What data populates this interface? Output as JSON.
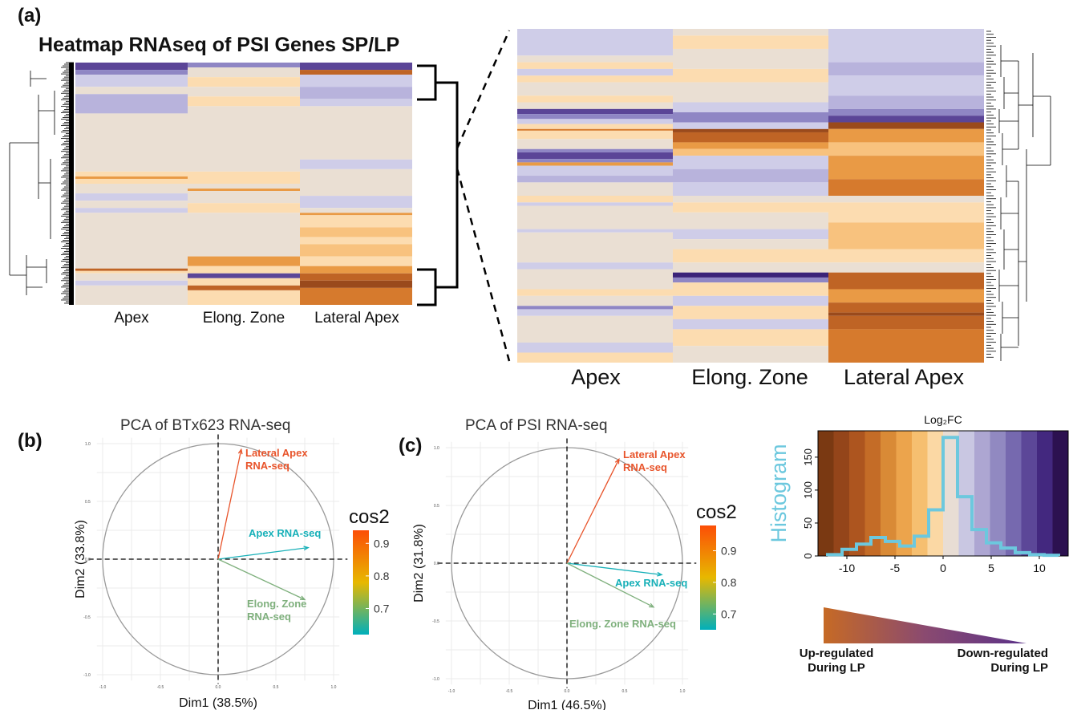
{
  "panel_a": {
    "letter": "(a)",
    "title": "Heatmap RNAseq of PSI Genes SP/LP",
    "columns": [
      "Apex",
      "Elong. Zone",
      "Lateral Apex"
    ]
  },
  "panel_b": {
    "letter": "(b)",
    "title": "PCA of BTx623 RNA-seq",
    "xlabel": "Dim1 (38.5%)",
    "ylabel": "Dim2 (33.8%)",
    "legend_title": "cos2",
    "legend_ticks": [
      "0.9",
      "0.8",
      "0.7"
    ]
  },
  "panel_c": {
    "letter": "(c)",
    "title": "PCA of PSI RNA-seq",
    "xlabel": "Dim1 (46.5%)",
    "ylabel": "Dim2 (31.8%)",
    "legend_title": "cos2",
    "legend_ticks": [
      "0.9",
      "0.8",
      "0.7"
    ]
  },
  "histogram_panel": {
    "title": "Log₂FC",
    "ylabel": "Histogram",
    "up_label": "Up-regulated During LP",
    "down_label": "Down-regulated During LP",
    "up_line1": "Up-regulated",
    "up_line2": "During LP",
    "down_line1": "Down-regulated",
    "down_line2": "During LP"
  },
  "colors": {
    "heat_low": "#8b3d14",
    "heat_mid_orange": "#f4b86a",
    "heat_neutral": "#eadfd3",
    "heat_lavender": "#c9c7e4",
    "heat_high": "#2d1248",
    "hist_line": "#6cc8de",
    "arrow_lateral": "#e8542b",
    "arrow_apex": "#17b0b8",
    "arrow_elong": "#7fb07d"
  },
  "chart_data": [
    {
      "type": "scatter",
      "title": "PCA of BTx623 RNA-seq",
      "xlabel": "Dim1 (38.5%)",
      "ylabel": "Dim2 (33.8%)",
      "xlim": [
        -1.0,
        1.0
      ],
      "ylim": [
        -1.0,
        1.0
      ],
      "x_ticks": [
        "-1.0",
        "-0.5",
        "0.0",
        "0.5",
        "1.0"
      ],
      "y_ticks": [
        "1.0",
        "0.5",
        "0.0",
        "-0.5",
        "-1.0"
      ],
      "grid": true,
      "legend": "right",
      "variables": [
        {
          "label_line1": "Lateral Apex",
          "label_line2": "RNA-seq",
          "x": 0.2,
          "y": 0.95,
          "cos2": 0.94
        },
        {
          "label_line1": "Apex RNA-seq",
          "label_line2": "",
          "x": 0.78,
          "y": 0.1,
          "cos2": 0.62
        },
        {
          "label_line1": "Elong. Zone",
          "label_line2": "RNA-seq",
          "x": 0.75,
          "y": -0.35,
          "cos2": 0.7
        }
      ],
      "cos2_range": [
        0.62,
        0.94
      ]
    },
    {
      "type": "scatter",
      "title": "PCA of PSI RNA-seq",
      "xlabel": "Dim1 (46.5%)",
      "ylabel": "Dim2 (31.8%)",
      "xlim": [
        -1.0,
        1.0
      ],
      "ylim": [
        -1.0,
        1.0
      ],
      "x_ticks": [
        "-1.0",
        "-0.5",
        "0.0",
        "0.5",
        "1.0"
      ],
      "y_ticks": [
        "1.0",
        "0.5",
        "0.0",
        "-0.5",
        "-1.0"
      ],
      "grid": true,
      "legend": "right",
      "variables": [
        {
          "label_line1": "Lateral Apex",
          "label_line2": "RNA-seq",
          "x": 0.45,
          "y": 0.9,
          "cos2": 0.97
        },
        {
          "label_line1": "Apex RNA-seq",
          "label_line2": "",
          "x": 0.82,
          "y": -0.1,
          "cos2": 0.7
        },
        {
          "label_line1": "Elong. Zone RNA-seq",
          "label_line2": "",
          "x": 0.75,
          "y": -0.38,
          "cos2": 0.66
        }
      ],
      "cos2_range": [
        0.65,
        0.98
      ]
    },
    {
      "type": "bar",
      "title": "Log₂FC",
      "ylabel": "Histogram",
      "xlim": [
        -13,
        13
      ],
      "ylim": [
        0,
        190
      ],
      "x_ticks": [
        -10,
        -5,
        0,
        5,
        10
      ],
      "y_ticks": [
        0,
        50,
        100,
        150
      ],
      "bin_edges": [
        -12,
        -10.5,
        -9,
        -7.5,
        -6,
        -4.5,
        -3,
        -1.5,
        0,
        1.5,
        3,
        4.5,
        6,
        7.5,
        9,
        10.5,
        12
      ],
      "counts": [
        2,
        10,
        18,
        28,
        22,
        15,
        30,
        70,
        180,
        90,
        40,
        20,
        12,
        5,
        2,
        1
      ],
      "color_bands": [
        "#7a3912",
        "#94451a",
        "#ad551f",
        "#c46c27",
        "#d98a36",
        "#eca44c",
        "#f6bf70",
        "#fbd8a4",
        "#e8ddd4",
        "#c9c7e2",
        "#ada6d2",
        "#9189c1",
        "#7669af",
        "#5c4798",
        "#43287f",
        "#2c1150"
      ]
    },
    {
      "type": "heatmap",
      "title": "Heatmap RNAseq of PSI Genes SP/LP",
      "columns": [
        "Apex",
        "Elong. Zone",
        "Lateral Apex"
      ]
    }
  ]
}
